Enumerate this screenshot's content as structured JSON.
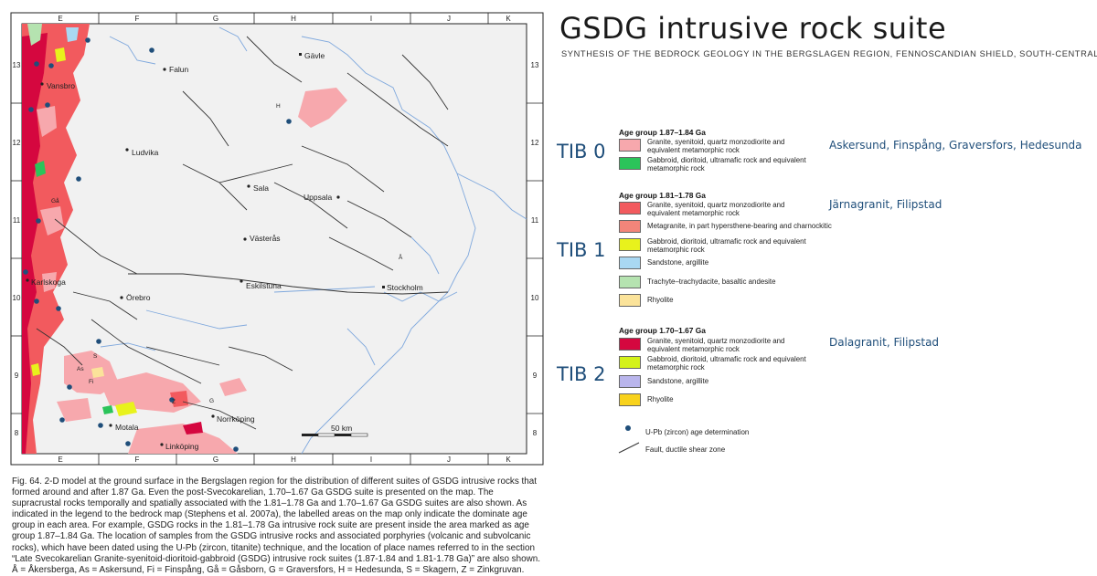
{
  "title": "GSDG intrusive rock suite",
  "subtitle": "SYNTHESIS OF THE BEDROCK GEOLOGY IN THE BERGSLAGEN REGION, FENNOSCANDIAN SHIELD, SOUTH-CENTRAL SWEDEN",
  "map": {
    "grid_columns": [
      "E",
      "F",
      "G",
      "H",
      "I",
      "J",
      "K"
    ],
    "grid_rows": [
      "13",
      "12",
      "11",
      "10",
      "9",
      "8"
    ],
    "scale_label": "50 km",
    "cities": [
      {
        "name": "Gävle"
      },
      {
        "name": "Falun"
      },
      {
        "name": "Vansbro"
      },
      {
        "name": "Ludvika"
      },
      {
        "name": "Sala"
      },
      {
        "name": "Uppsala"
      },
      {
        "name": "Västerås"
      },
      {
        "name": "Karlskoga"
      },
      {
        "name": "Örebro"
      },
      {
        "name": "Eskilstuna"
      },
      {
        "name": "Stockholm"
      },
      {
        "name": "Norrköping"
      },
      {
        "name": "Motala"
      },
      {
        "name": "Linköping"
      }
    ],
    "area_labels": [
      "H",
      "Z",
      "Å",
      "Gå",
      "Fi",
      "S",
      "As",
      "G"
    ]
  },
  "legend": {
    "groups": [
      {
        "tib": "TIB 0",
        "title": "Age group 1.87–1.84 Ga",
        "places": "Askersund, Finspång, Graversfors, Hedesunda",
        "items": [
          {
            "color": "#f7a8ad",
            "label": "Granite, syenitoid, quartz monzodiorite and equivalent metamorphic rock"
          },
          {
            "color": "#2bc45a",
            "label": "Gabbroid, dioritoid, ultramafic rock and equivalent metamorphic rock"
          }
        ]
      },
      {
        "tib": "TIB 1",
        "title": "Age group 1.81–1.78 Ga",
        "places": "Järnagranit, Filipstad",
        "items": [
          {
            "color": "#f25a5e",
            "label": "Granite, syenitoid, quartz monzodiorite and equivalent metamorphic rock"
          },
          {
            "color": "#f3857a",
            "label": "Metagranite, in part hypersthene-bearing and charnockitic"
          },
          {
            "color": "#e8f21c",
            "label": "Gabbroid, dioritoid, ultramafic rock and equivalent metamorphic rock"
          },
          {
            "color": "#a9d8f2",
            "label": "Sandstone, argillite"
          },
          {
            "color": "#b5e3b0",
            "label": "Trachyte–trachydacite, basaltic andesite"
          },
          {
            "color": "#fbe39a",
            "label": "Rhyolite"
          }
        ]
      },
      {
        "tib": "TIB 2",
        "title": "Age group 1.70–1.67 Ga",
        "places": "Dalagranit, Filipstad",
        "items": [
          {
            "color": "#d5073f",
            "label": "Granite, syenitoid, quartz monzodiorite and equivalent metamorphic rock"
          },
          {
            "color": "#d4f21a",
            "label": "Gabbroid, dioritoid, ultramafic rock and equivalent metamorphic rock"
          },
          {
            "color": "#b9b5ec",
            "label": "Sandstone, argillite"
          },
          {
            "color": "#f8d21c",
            "label": "Rhyolite"
          }
        ]
      }
    ],
    "dot_label": "U-Pb (zircon) age determination",
    "fault_label": "Fault, ductile shear zone",
    "dot_color": "#1f4e7a"
  },
  "caption": "Fig. 64. 2-D model at the ground surface in the Bergslagen region for the distribution of different suites of GSDG intrusive rocks that formed around and after 1.87 Ga. Even the post-Svecokarelian, 1.70–1.67 Ga GSDG suite is presented on the map. The supracrustal rocks temporally and spatially associated with the 1.81–1.78 Ga and 1.70–1.67 Ga GSDG suites are also shown. As indicated in the legend to the bedrock map (Stephens et al. 2007a), the labelled areas on the map only indicate the dominate age group in each area. For example, GSDG rocks in the 1.81–1.78 Ga intrusive rock suite are present inside the area marked as age group 1.87–1.84 Ga. The location of samples from the GSDG intrusive rocks and associated porphyries (volcanic and subvolcanic rocks), which have been dated using the U-Pb (zircon, titanite) technique, and the location of place names referred to in the section “Late Svecokarelian Granite-syenitoid-dioritoid-gabbroid (GSDG) intrusive rock suites (1.87-1.84 and 1.81-1.78 Ga)” are also shown. Å = Åkersberga, As = Askersund, Fi = Finspång, Gå = Gåsborn, G = Graversfors, H = Hedesunda, S = Skagern, Z = Zinkgruvan."
}
